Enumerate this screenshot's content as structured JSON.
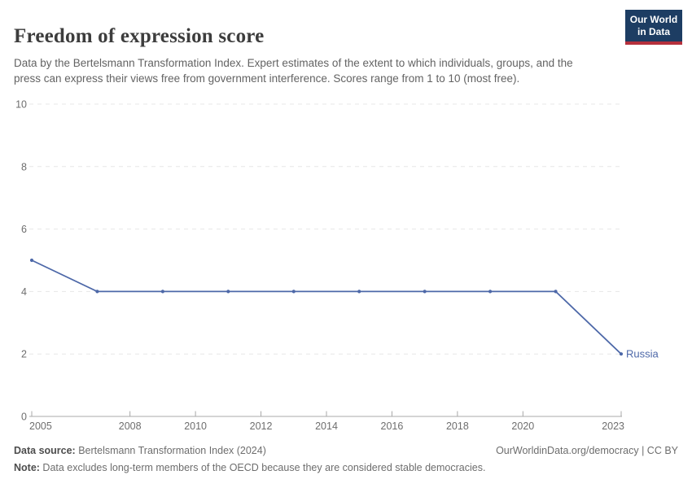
{
  "header": {
    "title": "Freedom of expression score",
    "subtitle": "Data by the Bertelsmann Transformation Index. Expert estimates of the extent to which individuals, groups, and the press can express their views free from government interference. Scores range from 1 to 10 (most free).",
    "logo": {
      "line1": "Our World",
      "line2": "in Data"
    }
  },
  "colors": {
    "logo_bg": "#1d3d63",
    "logo_accent": "#b5303c",
    "series_line": "#4d68a8",
    "gridline": "#e7e7e7",
    "axis_line": "#a8a8a8",
    "tick_label": "#6e6e6e"
  },
  "chart_data": {
    "type": "line",
    "title": "Freedom of expression score",
    "xlabel": "",
    "ylabel": "",
    "xlim": [
      2005,
      2023
    ],
    "ylim": [
      0,
      10
    ],
    "grid": "horizontal-dashed",
    "legend_position": "end-of-line-label",
    "x_ticks": [
      "2005",
      "2008",
      "2010",
      "2012",
      "2014",
      "2016",
      "2018",
      "2020",
      "2023"
    ],
    "y_ticks": [
      0,
      2,
      4,
      6,
      8,
      10
    ],
    "series": [
      {
        "name": "Russia",
        "x": [
          2005,
          2007,
          2009,
          2011,
          2013,
          2015,
          2017,
          2019,
          2021,
          2023
        ],
        "values": [
          5,
          4,
          4,
          4,
          4,
          4,
          4,
          4,
          4,
          2
        ]
      }
    ]
  },
  "footer": {
    "source_label": "Data source:",
    "source_text": " Bertelsmann Transformation Index (2024)",
    "attribution": "OurWorldinData.org/democracy | CC BY",
    "note_label": "Note:",
    "note_text": " Data excludes long-term members of the OECD because they are considered stable democracies."
  }
}
